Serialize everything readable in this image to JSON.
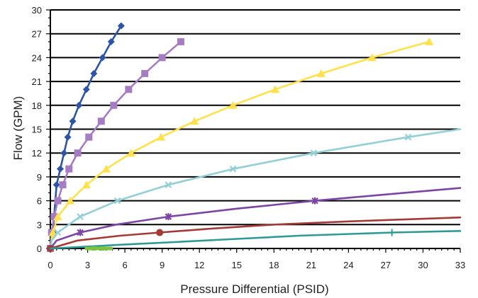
{
  "chart_data": {
    "type": "line",
    "title": "",
    "xlabel": "Pressure Differential (PSID)",
    "ylabel": "Flow (GPM)",
    "xlim": [
      0,
      33
    ],
    "ylim": [
      0,
      30
    ],
    "x_ticks": [
      "0",
      "3",
      "6",
      "9",
      "12",
      "15",
      "18",
      "21",
      "24",
      "27",
      "30",
      "33"
    ],
    "y_ticks": [
      "0",
      "3",
      "6",
      "9",
      "12",
      "15",
      "18",
      "21",
      "24",
      "27",
      "30"
    ],
    "grid": "horizontal",
    "legend": "none",
    "series": [
      {
        "color": "#2E54A4",
        "marker": "diamond",
        "points": [
          [
            0,
            0
          ],
          [
            0.2,
            2
          ],
          [
            0.5,
            8
          ],
          [
            0.8,
            10
          ],
          [
            1.1,
            12
          ],
          [
            1.4,
            14
          ],
          [
            1.8,
            16
          ],
          [
            2.3,
            18
          ],
          [
            2.9,
            20
          ],
          [
            3.5,
            22
          ],
          [
            4.2,
            24
          ],
          [
            4.9,
            26
          ],
          [
            5.7,
            28
          ]
        ],
        "markers": [
          [
            0,
            0
          ],
          [
            0.2,
            2
          ],
          [
            0.5,
            8
          ],
          [
            0.8,
            10
          ],
          [
            1.1,
            12
          ],
          [
            1.4,
            14
          ],
          [
            1.8,
            16
          ],
          [
            2.3,
            18
          ],
          [
            2.9,
            20
          ],
          [
            3.5,
            22
          ],
          [
            4.2,
            24
          ],
          [
            4.9,
            26
          ],
          [
            5.7,
            28
          ]
        ]
      },
      {
        "color": "#A77DC2",
        "marker": "square",
        "points": [
          [
            0,
            0
          ],
          [
            0.1,
            2
          ],
          [
            0.3,
            4
          ],
          [
            0.6,
            6
          ],
          [
            1.0,
            8
          ],
          [
            1.5,
            10
          ],
          [
            2.2,
            12
          ],
          [
            3.1,
            14
          ],
          [
            4.1,
            16
          ],
          [
            5.1,
            18
          ],
          [
            6.3,
            20
          ],
          [
            7.6,
            22
          ],
          [
            9.0,
            24
          ],
          [
            10.5,
            26
          ]
        ],
        "markers": [
          [
            0,
            0
          ],
          [
            0.1,
            2
          ],
          [
            0.3,
            4
          ],
          [
            0.6,
            6
          ],
          [
            1.0,
            8
          ],
          [
            1.5,
            10
          ],
          [
            2.2,
            12
          ],
          [
            3.1,
            14
          ],
          [
            4.1,
            16
          ],
          [
            5.1,
            18
          ],
          [
            6.3,
            20
          ],
          [
            7.6,
            22
          ],
          [
            9.0,
            24
          ],
          [
            10.5,
            26
          ]
        ]
      },
      {
        "color": "#FFE14D",
        "marker": "triangle",
        "points": [
          [
            0,
            0
          ],
          [
            0.2,
            2
          ],
          [
            0.6,
            4
          ],
          [
            1.6,
            6
          ],
          [
            2.9,
            8
          ],
          [
            4.5,
            10
          ],
          [
            6.5,
            12
          ],
          [
            8.9,
            14
          ],
          [
            11.6,
            16
          ],
          [
            14.7,
            18
          ],
          [
            18.1,
            20
          ],
          [
            21.8,
            22
          ],
          [
            25.9,
            24
          ],
          [
            30.5,
            26
          ]
        ],
        "markers": [
          [
            0.2,
            2
          ],
          [
            0.6,
            4
          ],
          [
            1.6,
            6
          ],
          [
            2.9,
            8
          ],
          [
            4.5,
            10
          ],
          [
            6.5,
            12
          ],
          [
            8.9,
            14
          ],
          [
            11.6,
            16
          ],
          [
            14.7,
            18
          ],
          [
            18.1,
            20
          ],
          [
            21.8,
            22
          ],
          [
            25.9,
            24
          ],
          [
            30.5,
            26
          ]
        ]
      },
      {
        "color": "#92D0D6",
        "marker": "x",
        "points": [
          [
            0,
            0
          ],
          [
            0.1,
            1
          ],
          [
            0.6,
            2
          ],
          [
            2.4,
            4
          ],
          [
            5.4,
            6
          ],
          [
            9.5,
            8
          ],
          [
            14.7,
            10
          ],
          [
            21.2,
            12
          ],
          [
            28.8,
            14
          ],
          [
            33,
            15
          ]
        ],
        "markers": [
          [
            0.6,
            2
          ],
          [
            2.4,
            4
          ],
          [
            5.4,
            6
          ],
          [
            9.5,
            8
          ],
          [
            14.7,
            10
          ],
          [
            21.2,
            12
          ],
          [
            28.8,
            14
          ]
        ]
      },
      {
        "color": "#7E44A4",
        "marker": "star",
        "points": [
          [
            0,
            0
          ],
          [
            0.5,
            1
          ],
          [
            2.4,
            2
          ],
          [
            5.3,
            3
          ],
          [
            9.5,
            4
          ],
          [
            15.0,
            5
          ],
          [
            21.3,
            6
          ],
          [
            28.5,
            7
          ],
          [
            33,
            7.6
          ]
        ],
        "markers": [
          [
            2.4,
            2
          ],
          [
            9.5,
            4
          ],
          [
            21.3,
            6
          ]
        ]
      },
      {
        "color": "#A43A37",
        "marker": "circle",
        "points": [
          [
            0,
            0
          ],
          [
            2.2,
            1
          ],
          [
            5.6,
            1.6
          ],
          [
            8.8,
            2
          ],
          [
            13,
            2.5
          ],
          [
            18,
            3
          ],
          [
            24,
            3.4
          ],
          [
            33,
            3.9
          ]
        ],
        "markers": [
          [
            0,
            0
          ],
          [
            8.8,
            2
          ]
        ]
      },
      {
        "color": "#2E9A96",
        "marker": "plus",
        "points": [
          [
            0,
            0
          ],
          [
            2.5,
            0.2
          ],
          [
            6,
            0.5
          ],
          [
            10,
            0.8
          ],
          [
            15,
            1.2
          ],
          [
            20,
            1.6
          ],
          [
            27.5,
            2
          ],
          [
            33,
            2.2
          ]
        ],
        "markers": [
          [
            27.5,
            2
          ]
        ]
      },
      {
        "color": "#7BC142",
        "marker": "bar",
        "points": [
          [
            2.9,
            0
          ],
          [
            3.5,
            0
          ],
          [
            4.2,
            0
          ],
          [
            4.9,
            0
          ]
        ],
        "markers": [
          [
            3.5,
            0
          ],
          [
            4.2,
            0
          ]
        ]
      }
    ]
  }
}
